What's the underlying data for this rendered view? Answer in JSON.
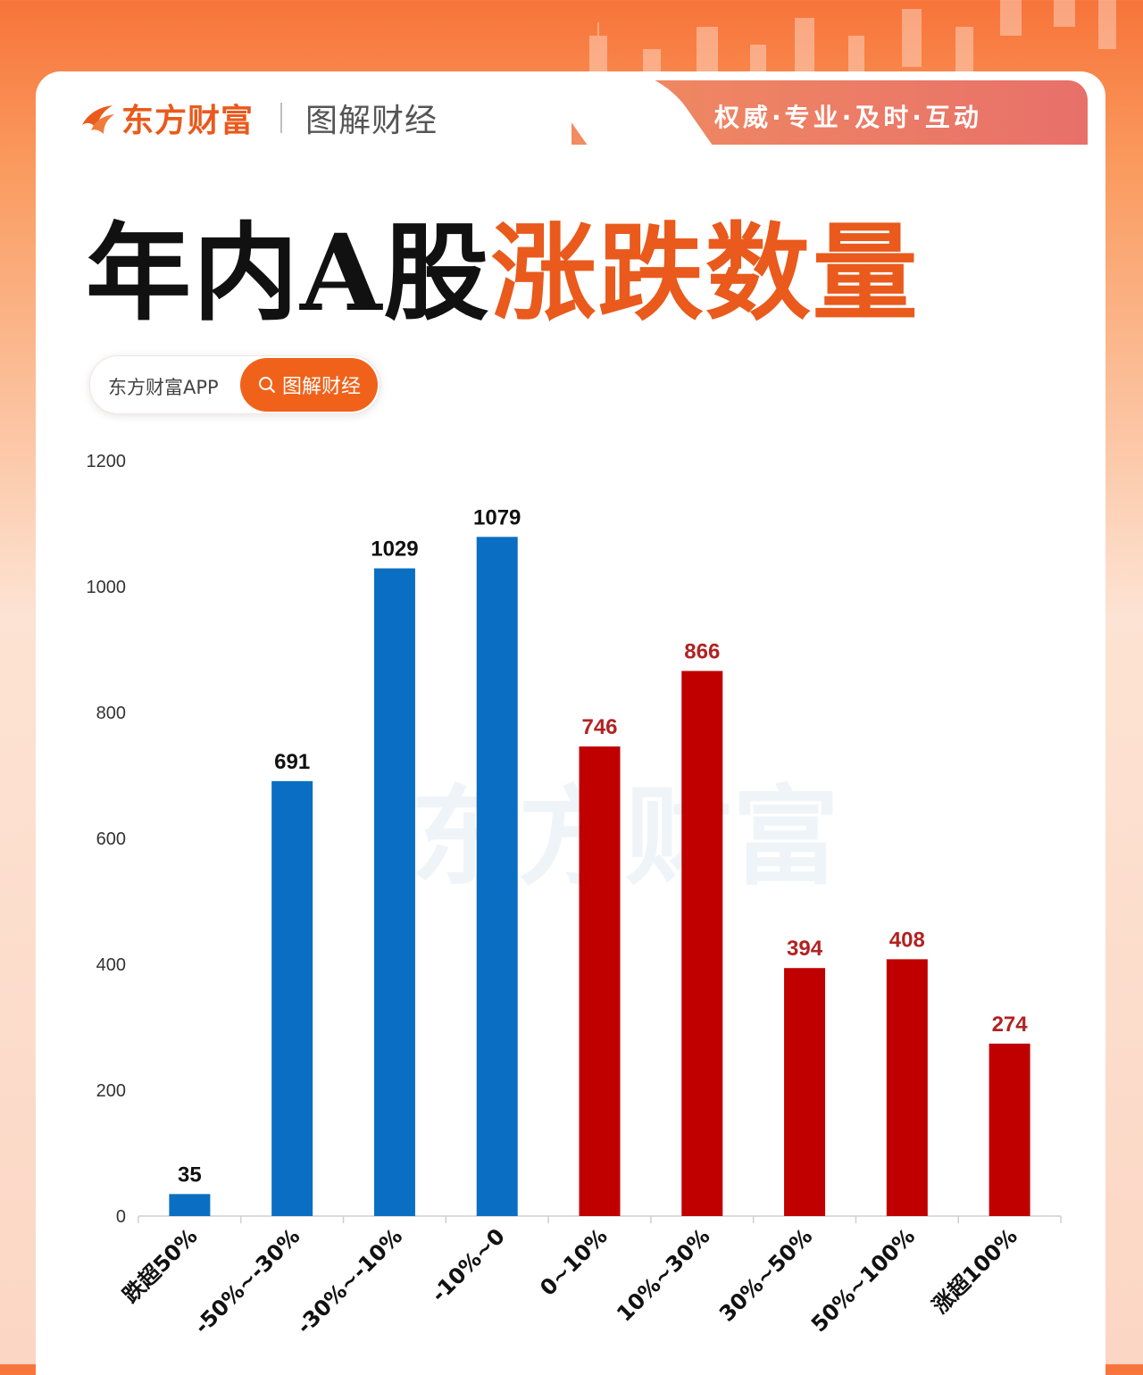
{
  "header": {
    "brand_name": "东方财富",
    "brand_sub": "图解财经",
    "slogan": "权威·专业·及时·互动"
  },
  "title": {
    "part1": "年内A股",
    "part2": "涨跌数量"
  },
  "search": {
    "prefix": "东方财富APP",
    "query": "图解财经"
  },
  "watermark": "东方财富",
  "colors": {
    "fall": "#0a6fc2",
    "rise": "#c00000",
    "brand": "#e95a1c"
  },
  "chart_data": {
    "type": "bar",
    "categories": [
      "跌超50%",
      "-50%~-30%",
      "-30%~-10%",
      "-10%~0",
      "0~10%",
      "10%~30%",
      "30%~50%",
      "50%~100%",
      "涨超100%"
    ],
    "values": [
      35,
      691,
      1029,
      1079,
      746,
      866,
      394,
      408,
      274
    ],
    "direction": [
      "fall",
      "fall",
      "fall",
      "fall",
      "rise",
      "rise",
      "rise",
      "rise",
      "rise"
    ],
    "y_ticks": [
      0,
      200,
      400,
      600,
      800,
      1000,
      1200
    ],
    "ylim": [
      0,
      1200
    ],
    "title": "",
    "xlabel": "",
    "ylabel": "",
    "grid": false,
    "legend": "none"
  }
}
